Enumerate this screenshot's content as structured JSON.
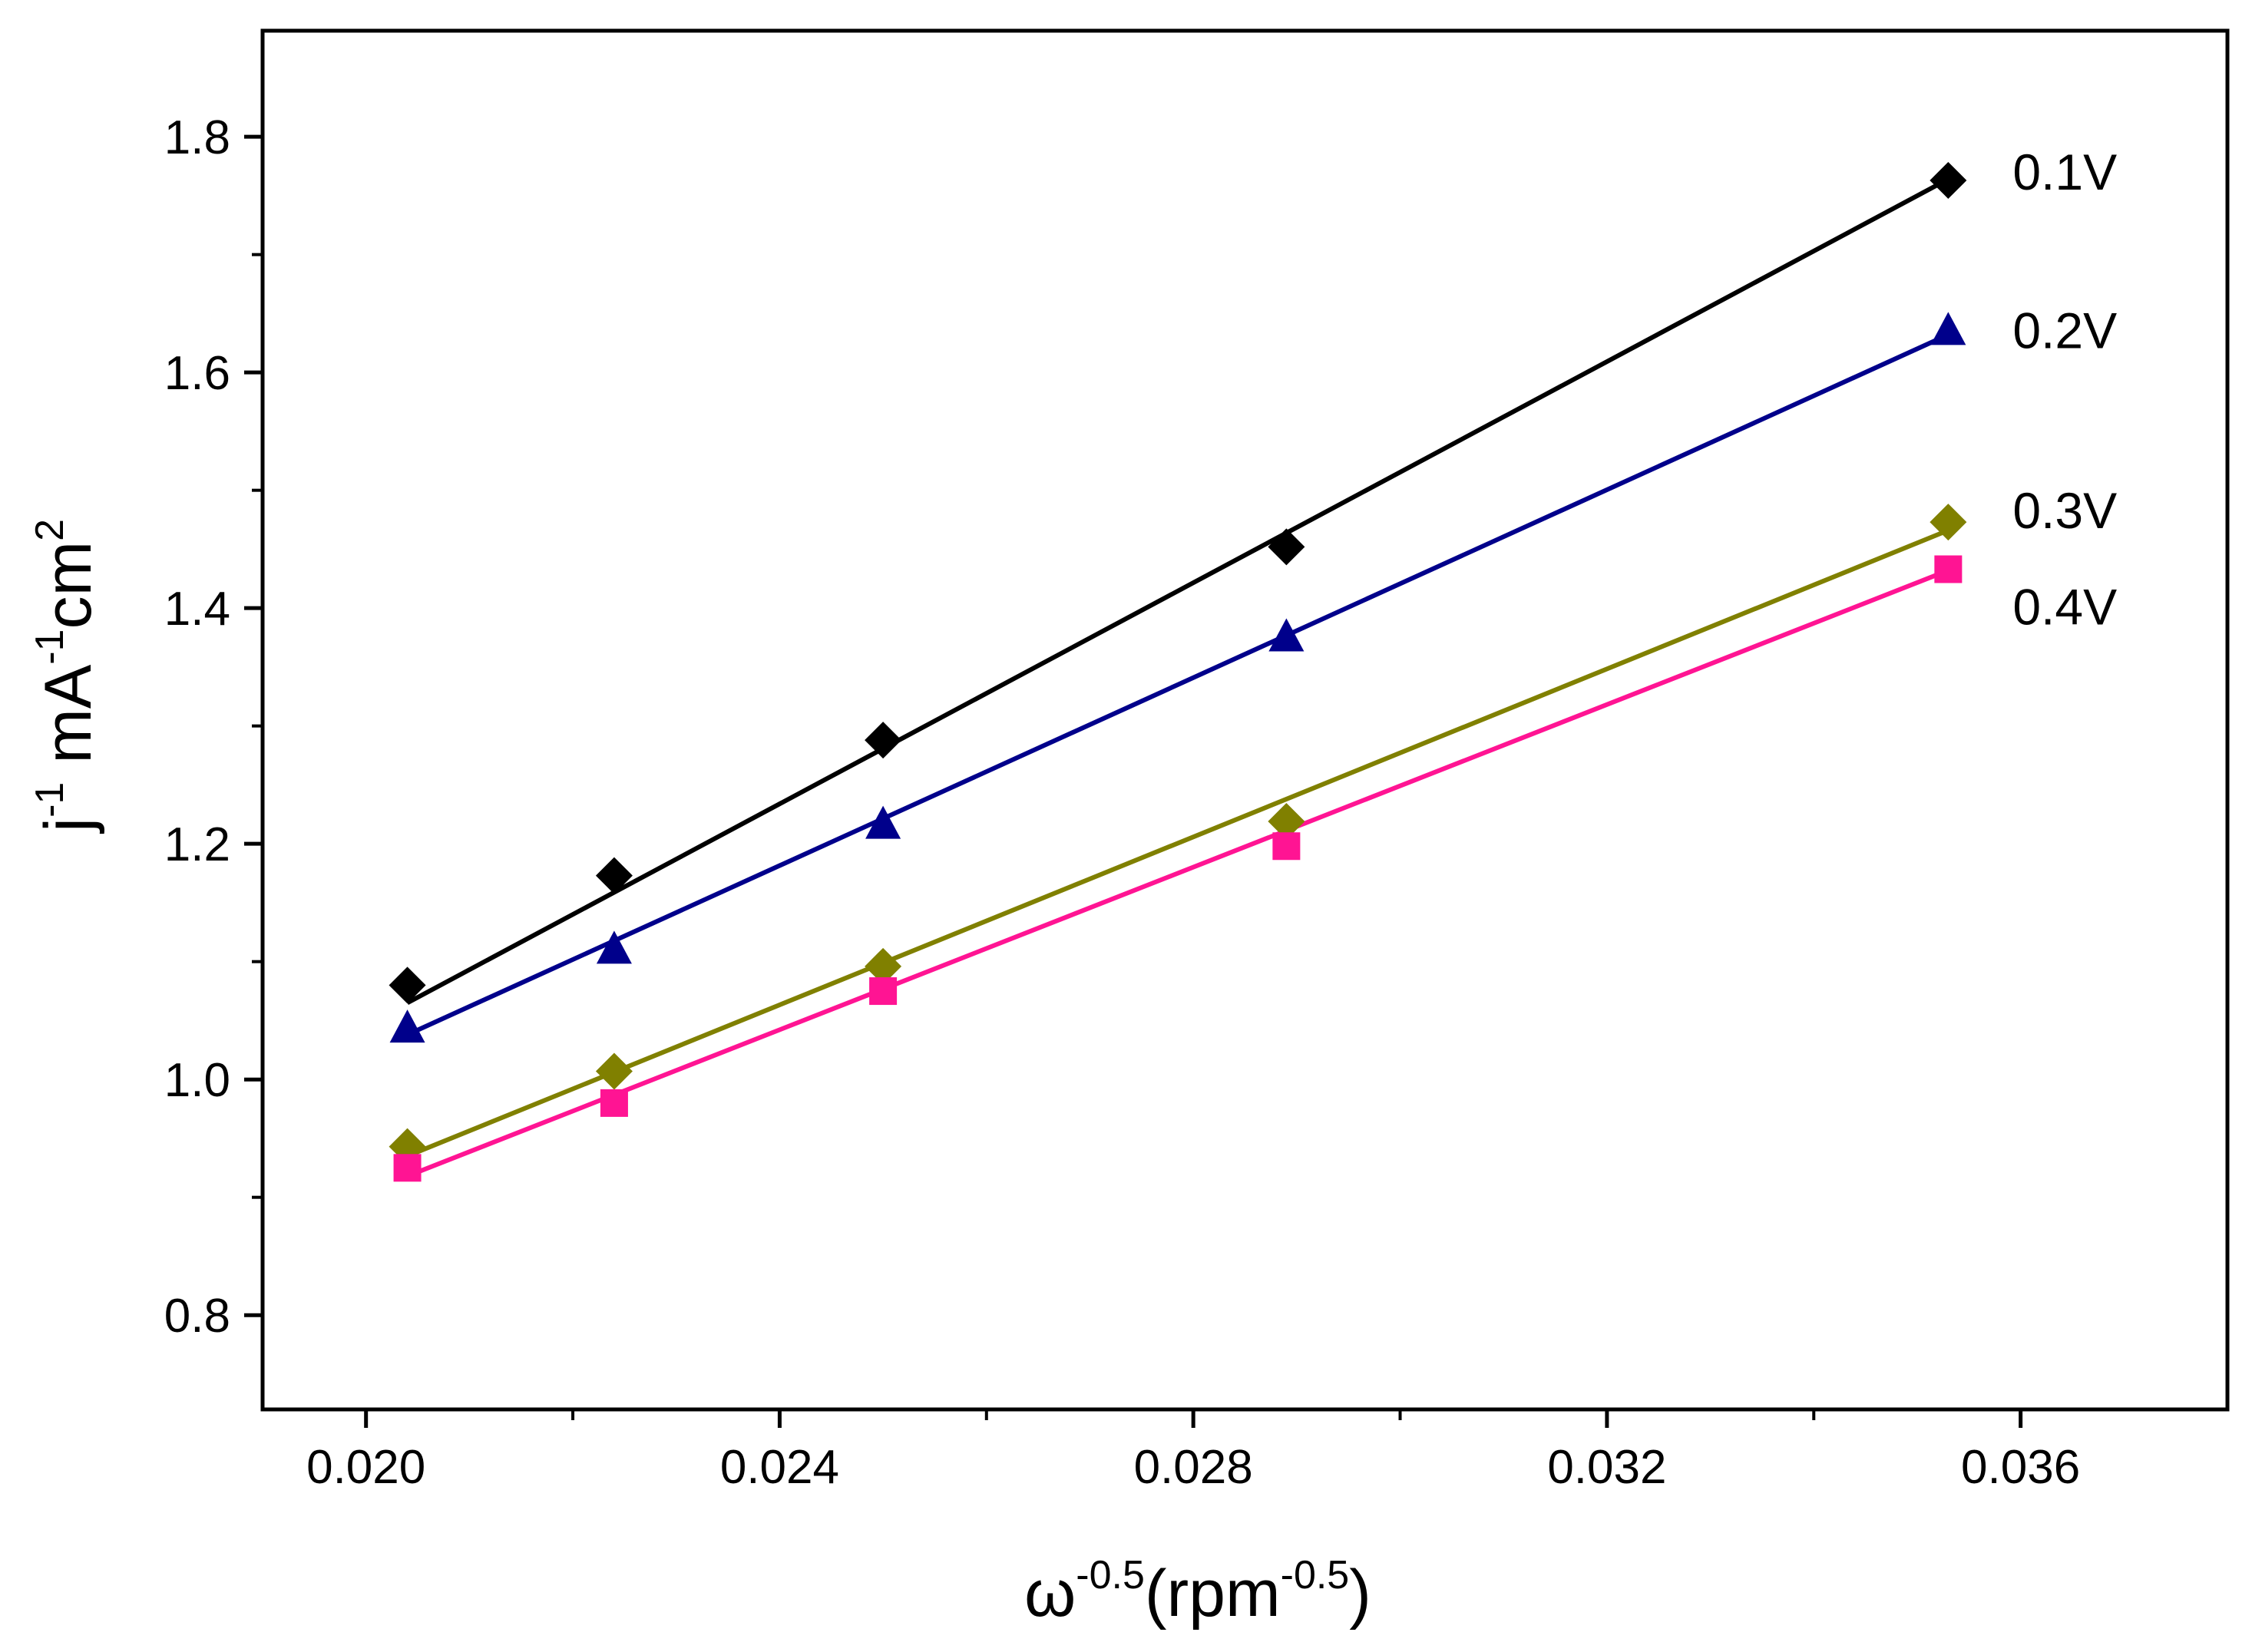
{
  "chart_data": {
    "type": "scatter",
    "title": "",
    "xlabel": {
      "base": "ω",
      "base_sup": "-0.5",
      "unit_open": "(rpm",
      "unit_sup": "-0.5",
      "unit_close": ")"
    },
    "ylabel": {
      "p1": "j",
      "s1": "-1",
      "p2": " mA",
      "s2": "-1",
      "p3": "cm",
      "s3": "2"
    },
    "xlim": [
      0.019,
      0.038
    ],
    "ylim": [
      0.72,
      1.89
    ],
    "x_ticks": [
      "0.020",
      "0.024",
      "0.028",
      "0.032",
      "0.036"
    ],
    "y_ticks": [
      "0.8",
      "1.0",
      "1.2",
      "1.4",
      "1.6",
      "1.8"
    ],
    "x_minor": [
      0.022,
      0.026,
      0.03,
      0.034
    ],
    "y_minor": [
      0.9,
      1.1,
      1.3,
      1.5,
      1.7
    ],
    "grid": false,
    "legend": "inline labels right of last point",
    "x": [
      0.0204,
      0.0224,
      0.025,
      0.0289,
      0.0353
    ],
    "series": [
      {
        "name": "0.1V",
        "label": "0.1V",
        "marker": "diamond",
        "color": "#000000",
        "values": [
          1.08,
          1.173,
          1.288,
          1.452,
          1.763
        ],
        "fit": [
          1.065,
          1.764
        ]
      },
      {
        "name": "0.2V",
        "label": "0.2V",
        "marker": "triangle",
        "color": "#00008b",
        "values": [
          1.043,
          1.11,
          1.216,
          1.375,
          1.635
        ],
        "fit": [
          1.038,
          1.632
        ]
      },
      {
        "name": "0.3V",
        "label": "0.3V",
        "marker": "diamond",
        "color": "#808000",
        "values": [
          0.943,
          1.007,
          1.096,
          1.219,
          1.473
        ],
        "fit": [
          0.935,
          1.466
        ]
      },
      {
        "name": "0.4V",
        "label": "0.4V",
        "marker": "square",
        "color": "#ff1493",
        "values": [
          0.925,
          0.98,
          1.075,
          1.198,
          1.433
        ],
        "fit": [
          0.918,
          1.432
        ]
      }
    ]
  }
}
